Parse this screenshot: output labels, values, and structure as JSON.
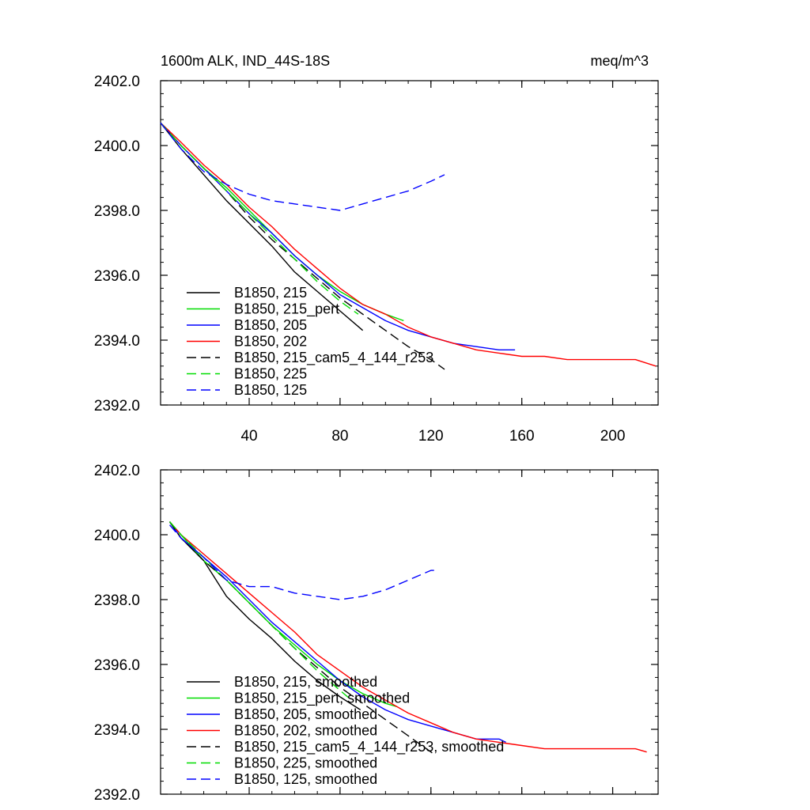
{
  "header": {
    "title": "1600m ALK, IND_44S-18S",
    "units": "meq/m^3"
  },
  "chart_data": [
    {
      "type": "line",
      "title": "1600m ALK, IND_44S-18S",
      "units": "meq/m^3",
      "xlim": [
        1,
        220
      ],
      "ylim": [
        2392.0,
        2402.0
      ],
      "x_ticks": [
        40,
        80,
        120,
        160,
        200
      ],
      "x_tick_labels": [
        "40",
        "80",
        "120",
        "160",
        "200"
      ],
      "y_ticks": [
        2392.0,
        2394.0,
        2396.0,
        2398.0,
        2400.0,
        2402.0
      ],
      "y_tick_labels": [
        "2392.0",
        "2394.0",
        "2396.0",
        "2398.0",
        "2400.0",
        "2402.0"
      ],
      "legend_position": "bottom-left",
      "series": [
        {
          "name": "B1850, 215",
          "color": "#000000",
          "dash": "solid",
          "x": [
            1,
            10,
            20,
            30,
            40,
            50,
            60,
            70,
            80,
            90
          ],
          "y": [
            2400.7,
            2399.9,
            2399.1,
            2398.3,
            2397.6,
            2396.9,
            2396.1,
            2395.5,
            2394.9,
            2394.3
          ]
        },
        {
          "name": "B1850, 215_pert",
          "color": "#00dd00",
          "dash": "solid",
          "x": [
            1,
            10,
            20,
            30,
            40,
            50,
            60,
            70,
            80,
            90,
            100,
            108
          ],
          "y": [
            2400.7,
            2400.0,
            2399.3,
            2398.7,
            2398.0,
            2397.3,
            2396.6,
            2396.0,
            2395.5,
            2395.1,
            2394.8,
            2394.6
          ]
        },
        {
          "name": "B1850, 205",
          "color": "#0000ff",
          "dash": "solid",
          "x": [
            1,
            10,
            20,
            30,
            40,
            50,
            60,
            70,
            80,
            90,
            100,
            110,
            120,
            130,
            140,
            150,
            157
          ],
          "y": [
            2400.7,
            2400.0,
            2399.3,
            2398.6,
            2397.9,
            2397.3,
            2396.6,
            2396.0,
            2395.4,
            2395.0,
            2394.6,
            2394.3,
            2394.1,
            2393.9,
            2393.8,
            2393.7,
            2393.7
          ]
        },
        {
          "name": "B1850, 202",
          "color": "#ff0000",
          "dash": "solid",
          "x": [
            1,
            10,
            20,
            30,
            40,
            50,
            60,
            70,
            80,
            90,
            100,
            110,
            120,
            130,
            140,
            150,
            160,
            170,
            180,
            190,
            200,
            210,
            219
          ],
          "y": [
            2400.7,
            2400.1,
            2399.4,
            2398.8,
            2398.1,
            2397.5,
            2396.8,
            2396.2,
            2395.6,
            2395.1,
            2394.8,
            2394.4,
            2394.1,
            2393.9,
            2393.7,
            2393.6,
            2393.5,
            2393.5,
            2393.4,
            2393.4,
            2393.4,
            2393.4,
            2393.2
          ]
        },
        {
          "name": "B1850, 215_cam5_4_144_r253",
          "color": "#000000",
          "dash": "dashed",
          "x": [
            1,
            10,
            20,
            30,
            40,
            50,
            60,
            70,
            80,
            90,
            100,
            110,
            120,
            126
          ],
          "y": [
            2400.7,
            2400.0,
            2399.3,
            2398.6,
            2397.8,
            2397.1,
            2396.5,
            2395.9,
            2395.3,
            2394.8,
            2394.3,
            2393.8,
            2393.4,
            2393.1
          ]
        },
        {
          "name": "B1850, 225",
          "color": "#00dd00",
          "dash": "dashed",
          "x": [
            1,
            10,
            20,
            30,
            40,
            50,
            60,
            70,
            80,
            88
          ],
          "y": [
            2400.7,
            2400.0,
            2399.3,
            2398.6,
            2397.9,
            2397.2,
            2396.5,
            2395.8,
            2395.2,
            2394.8
          ]
        },
        {
          "name": "B1850, 125",
          "color": "#0000ff",
          "dash": "dashed",
          "x": [
            1,
            10,
            20,
            30,
            40,
            50,
            60,
            70,
            80,
            90,
            100,
            110,
            120,
            126
          ],
          "y": [
            2400.7,
            2399.9,
            2399.2,
            2398.8,
            2398.5,
            2398.3,
            2398.2,
            2398.1,
            2398.0,
            2398.2,
            2398.4,
            2398.6,
            2398.9,
            2399.1
          ]
        }
      ]
    },
    {
      "type": "line",
      "xlim": [
        1,
        220
      ],
      "ylim": [
        2392.0,
        2402.0
      ],
      "x_ticks": [
        40,
        80,
        120,
        160,
        200
      ],
      "x_tick_labels": [],
      "y_ticks": [
        2392.0,
        2394.0,
        2396.0,
        2398.0,
        2400.0,
        2402.0
      ],
      "y_tick_labels": [
        "2392.0",
        "2394.0",
        "2396.0",
        "2398.0",
        "2400.0",
        "2402.0"
      ],
      "legend_position": "bottom-left",
      "series": [
        {
          "name": "B1850, 215, smoothed",
          "color": "#000000",
          "dash": "solid",
          "x": [
            5,
            10,
            20,
            30,
            40,
            50,
            60,
            70,
            80,
            89
          ],
          "y": [
            2400.4,
            2399.9,
            2399.2,
            2398.1,
            2397.4,
            2396.8,
            2396.1,
            2395.5,
            2395.0,
            2394.6
          ]
        },
        {
          "name": "B1850, 215_pert, smoothed",
          "color": "#00dd00",
          "dash": "solid",
          "x": [
            5,
            10,
            20,
            30,
            40,
            50,
            60,
            70,
            80,
            90,
            100,
            105
          ],
          "y": [
            2400.4,
            2400.0,
            2399.2,
            2398.6,
            2397.9,
            2397.2,
            2396.6,
            2396.0,
            2395.5,
            2395.1,
            2394.8,
            2394.7
          ]
        },
        {
          "name": "B1850, 205, smoothed",
          "color": "#0000ff",
          "dash": "solid",
          "x": [
            5,
            10,
            20,
            30,
            40,
            50,
            60,
            70,
            80,
            90,
            100,
            110,
            120,
            130,
            140,
            150,
            153
          ],
          "y": [
            2400.4,
            2399.9,
            2399.3,
            2398.7,
            2398.0,
            2397.3,
            2396.7,
            2396.1,
            2395.5,
            2395.0,
            2394.6,
            2394.3,
            2394.1,
            2393.9,
            2393.7,
            2393.7,
            2393.6
          ]
        },
        {
          "name": "B1850, 202, smoothed",
          "color": "#ff0000",
          "dash": "solid",
          "x": [
            5,
            10,
            20,
            30,
            40,
            50,
            60,
            70,
            80,
            90,
            100,
            110,
            120,
            130,
            140,
            150,
            160,
            170,
            180,
            190,
            200,
            210,
            215
          ],
          "y": [
            2400.4,
            2400.0,
            2399.4,
            2398.8,
            2398.2,
            2397.6,
            2397.0,
            2396.3,
            2395.8,
            2395.3,
            2394.9,
            2394.5,
            2394.2,
            2393.9,
            2393.7,
            2393.6,
            2393.5,
            2393.4,
            2393.4,
            2393.4,
            2393.4,
            2393.4,
            2393.3
          ]
        },
        {
          "name": "B1850, 215_cam5_4_144_r253, smoothed",
          "color": "#000000",
          "dash": "dashed",
          "x": [
            5,
            10,
            20,
            30,
            40,
            50,
            60,
            70,
            80,
            90,
            100,
            110,
            120,
            122
          ],
          "y": [
            2400.4,
            2399.9,
            2399.2,
            2398.6,
            2397.9,
            2397.2,
            2396.5,
            2395.9,
            2395.3,
            2394.8,
            2394.3,
            2393.8,
            2393.3,
            2393.2
          ]
        },
        {
          "name": "B1850, 225, smoothed",
          "color": "#00dd00",
          "dash": "dashed",
          "x": [
            5,
            10,
            20,
            30,
            40,
            50,
            60,
            70,
            80,
            85
          ],
          "y": [
            2400.4,
            2400.0,
            2399.3,
            2398.6,
            2397.9,
            2397.2,
            2396.5,
            2395.8,
            2395.2,
            2394.9
          ]
        },
        {
          "name": "B1850, 125, smoothed",
          "color": "#0000ff",
          "dash": "dashed",
          "x": [
            5,
            10,
            20,
            30,
            40,
            50,
            60,
            70,
            80,
            90,
            100,
            110,
            120,
            122
          ],
          "y": [
            2400.3,
            2399.9,
            2399.3,
            2398.6,
            2398.4,
            2398.4,
            2398.2,
            2398.1,
            2398.0,
            2398.1,
            2398.3,
            2398.6,
            2398.9,
            2398.9
          ]
        }
      ]
    }
  ]
}
